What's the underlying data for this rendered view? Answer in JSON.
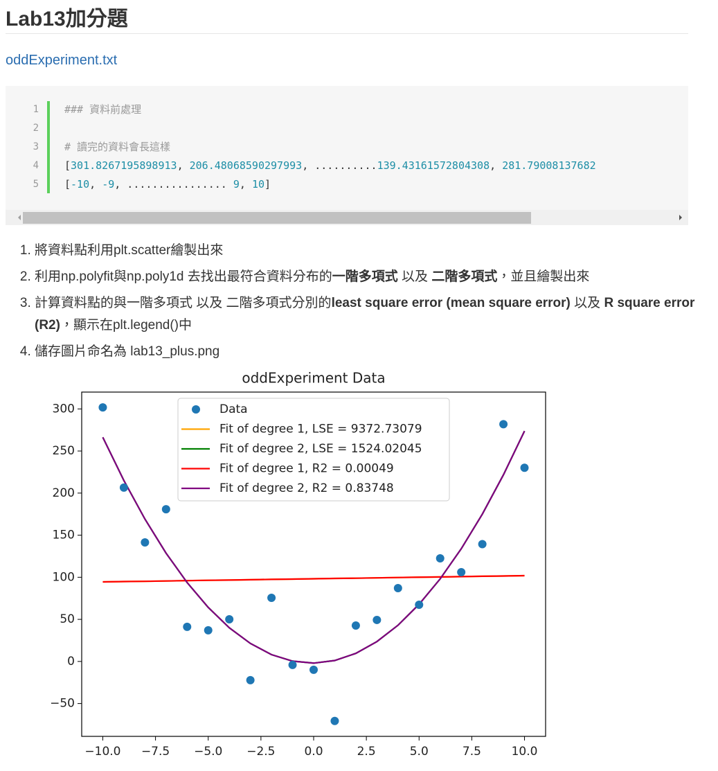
{
  "header": {
    "title": "Lab13加分題"
  },
  "link": "oddExperiment.txt",
  "code": {
    "lines": [
      {
        "number": 1,
        "text": "### 資料前處理"
      },
      {
        "number": 2,
        "text": ""
      },
      {
        "number": 3,
        "text": "# 讀完的資料會長這樣"
      },
      {
        "number": 4,
        "text": "[301.8267195898913, 206.48068590297993, ..........139.43161572804308, 281.79008137682"
      },
      {
        "number": 5,
        "text": "[-10, -9, ................ 9, 10]"
      }
    ]
  },
  "list": {
    "items": [
      [
        {
          "text": "將資料點利用plt.scatter繪製出來",
          "bold": false
        }
      ],
      [
        {
          "text": "利用np.polyfit與np.poly1d 去找出最符合資料分布的",
          "bold": false
        },
        {
          "text": "一階多項式",
          "bold": true
        },
        {
          "text": " 以及 ",
          "bold": false
        },
        {
          "text": "二階多項式",
          "bold": true
        },
        {
          "text": "，並且繪製出來",
          "bold": false
        }
      ],
      [
        {
          "text": "計算資料點的與一階多項式 以及 二階多項式分別的",
          "bold": false
        },
        {
          "text": "least square error (mean square error)",
          "bold": true
        },
        {
          "text": " 以及 ",
          "bold": false
        },
        {
          "text": "R square error (R2)",
          "bold": true
        },
        {
          "text": "，顯示在plt.legend()中",
          "bold": false
        }
      ],
      [
        {
          "text": "儲存圖片命名為 lab13_plus.png",
          "bold": false
        }
      ]
    ]
  },
  "chart_data": {
    "type": "scatter",
    "title": "oddExperiment Data",
    "x": [
      -10,
      -9,
      -8,
      -7,
      -6,
      -5,
      -4,
      -3,
      -2,
      -1,
      0,
      1,
      2,
      3,
      4,
      5,
      6,
      7,
      8,
      9,
      10
    ],
    "series": [
      {
        "name": "Data",
        "style": "scatter",
        "color": "#1f77b4",
        "values": [
          301.8,
          206.5,
          141.4,
          180.8,
          41.1,
          37.0,
          50.1,
          -22.2,
          75.6,
          -4.1,
          -9.9,
          -70.7,
          42.7,
          49.3,
          87.1,
          67.4,
          122.5,
          106.0,
          139.4,
          281.8,
          230.1
        ]
      },
      {
        "name": "Fit of degree 1, LSE = 9372.73079",
        "style": "line",
        "color": "#ffa500",
        "values": [
          94.5,
          94.9,
          95.2,
          95.6,
          96.0,
          96.4,
          96.7,
          97.1,
          97.5,
          97.8,
          98.2,
          98.6,
          98.9,
          99.3,
          99.7,
          100.1,
          100.4,
          100.8,
          101.2,
          101.5,
          101.9
        ]
      },
      {
        "name": "Fit of degree 2, LSE = 1524.02045",
        "style": "line",
        "color": "#008000",
        "values": [
          266.3,
          215.0,
          169.1,
          128.7,
          93.7,
          64.2,
          40.0,
          21.4,
          8.1,
          0.4,
          -2.0,
          1.1,
          9.6,
          23.6,
          43.0,
          67.9,
          98.1,
          133.9,
          175.0,
          221.7,
          273.7
        ]
      },
      {
        "name": "Fit of degree 1, R2 = 0.00049",
        "style": "line",
        "color": "#ff0000",
        "values": [
          94.5,
          94.9,
          95.2,
          95.6,
          96.0,
          96.4,
          96.7,
          97.1,
          97.5,
          97.8,
          98.2,
          98.6,
          98.9,
          99.3,
          99.7,
          100.1,
          100.4,
          100.8,
          101.2,
          101.5,
          101.9
        ]
      },
      {
        "name": "Fit of degree 2, R2 = 0.83748",
        "style": "line",
        "color": "#800080",
        "values": [
          266.3,
          215.0,
          169.1,
          128.7,
          93.7,
          64.2,
          40.0,
          21.4,
          8.1,
          0.4,
          -2.0,
          1.1,
          9.6,
          23.6,
          43.0,
          67.9,
          98.1,
          133.9,
          175.0,
          221.7,
          273.7
        ]
      }
    ],
    "xlim": [
      -11,
      11
    ],
    "ylim": [
      -89,
      320
    ],
    "xticks": [
      {
        "value": -10,
        "label": "−10.0"
      },
      {
        "value": -7.5,
        "label": "−7.5"
      },
      {
        "value": -5,
        "label": "−5.0"
      },
      {
        "value": -2.5,
        "label": "−2.5"
      },
      {
        "value": 0,
        "label": "0.0"
      },
      {
        "value": 2.5,
        "label": "2.5"
      },
      {
        "value": 5,
        "label": "5.0"
      },
      {
        "value": 7.5,
        "label": "7.5"
      },
      {
        "value": 10,
        "label": "10.0"
      }
    ],
    "yticks": [
      {
        "value": -50,
        "label": "−50"
      },
      0,
      50,
      100,
      150,
      200,
      250,
      300
    ],
    "legend": "upper center",
    "grid": false
  }
}
